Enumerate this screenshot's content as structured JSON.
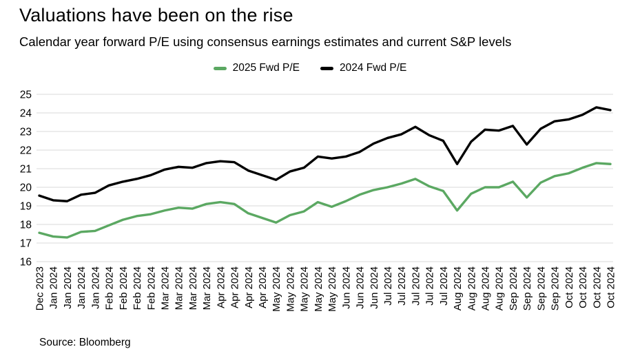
{
  "header": {
    "title": "Valuations have been on the rise",
    "subtitle": "Calendar year forward P/E using consensus earnings estimates and current S&P levels"
  },
  "legend": [
    {
      "label": "2025 Fwd P/E",
      "color": "#5ba862"
    },
    {
      "label": "2024 Fwd P/E",
      "color": "#000000"
    }
  ],
  "source": "Source: Bloomberg",
  "chart_data": {
    "type": "line",
    "title": "Valuations have been on the rise",
    "subtitle": "Calendar year forward P/E using consensus earnings estimates and current S&P levels",
    "xlabel": "",
    "ylabel": "",
    "ylim": [
      16,
      25
    ],
    "yticks": [
      16,
      17,
      18,
      19,
      20,
      21,
      22,
      23,
      24,
      25
    ],
    "grid": true,
    "gridline_color": "#d8d8d8",
    "legend_position": "top",
    "categories": [
      "Dec 2023",
      "Jan 2024",
      "Jan 2024",
      "Jan 2024",
      "Jan 2024",
      "Feb 2024",
      "Feb 2024",
      "Feb 2024",
      "Feb 2024",
      "Mar 2024",
      "Mar 2024",
      "Mar 2024",
      "Mar 2024",
      "Apr 2024",
      "Apr 2024",
      "Apr 2024",
      "Apr 2024",
      "May 2024",
      "May 2024",
      "May 2024",
      "May 2024",
      "May 2024",
      "Jun 2024",
      "Jun 2024",
      "Jun 2024",
      "Jul 2024",
      "Jul 2024",
      "Jul 2024",
      "Jul 2024",
      "Jul 2024",
      "Aug 2024",
      "Aug 2024",
      "Aug 2024",
      "Aug 2024",
      "Sep 2024",
      "Sep 2024",
      "Sep 2024",
      "Sep 2024",
      "Oct 2024",
      "Oct 2024",
      "Oct 2024",
      "Oct 2024"
    ],
    "series": [
      {
        "name": "2025 Fwd P/E",
        "color": "#5ba862",
        "values": [
          17.55,
          17.35,
          17.3,
          17.6,
          17.65,
          17.95,
          18.25,
          18.45,
          18.55,
          18.75,
          18.9,
          18.85,
          19.1,
          19.2,
          19.1,
          18.6,
          18.35,
          18.1,
          18.5,
          18.7,
          19.2,
          18.95,
          19.25,
          19.6,
          19.85,
          20.0,
          20.2,
          20.45,
          20.05,
          19.8,
          18.75,
          19.65,
          20.0,
          20.0,
          20.3,
          19.45,
          20.25,
          20.6,
          20.75,
          21.05,
          21.3,
          21.25
        ]
      },
      {
        "name": "2024 Fwd P/E",
        "color": "#000000",
        "values": [
          19.55,
          19.3,
          19.25,
          19.6,
          19.7,
          20.1,
          20.3,
          20.45,
          20.65,
          20.95,
          21.1,
          21.05,
          21.3,
          21.4,
          21.35,
          20.9,
          20.65,
          20.4,
          20.85,
          21.05,
          21.65,
          21.55,
          21.65,
          21.9,
          22.35,
          22.65,
          22.85,
          23.25,
          22.8,
          22.5,
          21.25,
          22.45,
          23.1,
          23.05,
          23.3,
          22.3,
          23.15,
          23.55,
          23.65,
          23.9,
          24.3,
          24.15
        ]
      }
    ]
  }
}
